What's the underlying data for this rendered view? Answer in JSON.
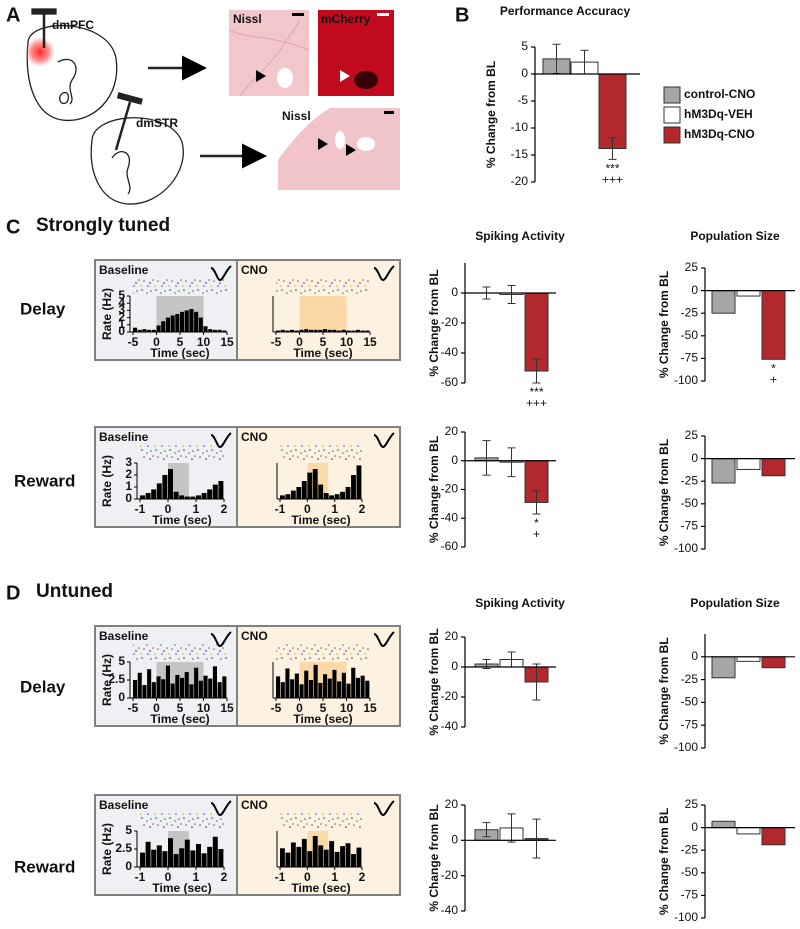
{
  "panel_labels": {
    "a": "A",
    "b": "B",
    "c": "C",
    "d": "D"
  },
  "sections": {
    "strong": "Strongly tuned",
    "untuned": "Untuned"
  },
  "rows": {
    "delay": "Delay",
    "reward": "Reward"
  },
  "anatomy": {
    "region_1": "dmPFC",
    "region_2": "dmSTR",
    "stain_1": "Nissl",
    "stain_2": "mCherry",
    "stain_3": "Nissl"
  },
  "chart_data": [
    {
      "type": "bar",
      "title": "Performance Accuracy",
      "ylabel": "% Change from BL",
      "legend": "right",
      "series": [
        {
          "name": "control-CNO",
          "color": "#a6a6a6",
          "values": [
            2.8
          ],
          "errors": [
            2.7
          ]
        },
        {
          "name": "hM3Dq-VEH",
          "color": "#ffffff",
          "values": [
            2.2
          ],
          "errors": [
            2.2
          ]
        },
        {
          "name": "hM3Dq-CNO",
          "color": "#b3282d",
          "values": [
            -13.8
          ],
          "errors": [
            2.0
          ]
        }
      ],
      "ylim": [
        -20,
        5
      ],
      "yticks": [
        5,
        0,
        -5,
        -10,
        -15,
        -20
      ],
      "annotations": [
        "***",
        "+++"
      ]
    },
    {
      "type": "histogram",
      "title": "Baseline",
      "xlabel": "Time (sec)",
      "ylabel": "Rate (Hz)",
      "bins": [
        -5,
        -4,
        -3,
        -2,
        -1,
        0,
        1,
        2,
        3,
        4,
        5,
        6,
        7,
        8,
        9,
        10,
        11,
        12,
        13,
        14,
        15
      ],
      "values": [
        0.6,
        0.3,
        0.4,
        0.3,
        0.3,
        0.9,
        1.5,
        2.0,
        2.3,
        2.5,
        2.8,
        3.0,
        3.2,
        2.8,
        2.0,
        0.8,
        0.4,
        0.3,
        0.3,
        0.2
      ],
      "color": "#000000",
      "xlim": [
        -5,
        15
      ],
      "xticks": [
        -5,
        0,
        5,
        10,
        15
      ],
      "ylim": [
        0,
        5
      ],
      "yticks": [
        0,
        1,
        2,
        3,
        4,
        5
      ],
      "shade": [
        0,
        10
      ],
      "shade_color": "#c4c4c4",
      "background": "#eef0f3"
    },
    {
      "type": "histogram",
      "title": "CNO",
      "xlabel": "Time (sec)",
      "bins": [
        -5,
        -4,
        -3,
        -2,
        -1,
        0,
        1,
        2,
        3,
        4,
        5,
        6,
        7,
        8,
        9,
        10,
        11,
        12,
        13,
        14,
        15
      ],
      "values": [
        0.2,
        0.3,
        0.2,
        0.3,
        0.2,
        0.3,
        0.4,
        0.3,
        0.3,
        0.3,
        0.4,
        0.3,
        0.3,
        0.2,
        0.3,
        0.2,
        0.2,
        0.3,
        0.2,
        0.2
      ],
      "color": "#000000",
      "xlim": [
        -5,
        15
      ],
      "xticks": [
        -5,
        0,
        5,
        10,
        15
      ],
      "ylim": [
        0,
        5
      ],
      "shade": [
        0,
        10
      ],
      "shade_color": "#fbd9a6",
      "background": "#fdf2e2"
    },
    {
      "type": "bar",
      "title": "Spiking Activity",
      "ylabel": "% Change from BL",
      "series": [
        {
          "color": "#a6a6a6",
          "values": [
            0
          ],
          "errors": [
            4
          ]
        },
        {
          "color": "#ffffff",
          "values": [
            -1
          ],
          "errors": [
            6
          ]
        },
        {
          "color": "#b3282d",
          "values": [
            -52
          ],
          "errors": [
            8
          ]
        }
      ],
      "ylim": [
        -60,
        20
      ],
      "yticks": [
        0,
        -20,
        -40,
        -60
      ],
      "annotations": [
        "***",
        "+++"
      ]
    },
    {
      "type": "bar",
      "title": "Population Size",
      "ylabel": "% Change from BL",
      "series": [
        {
          "color": "#a6a6a6",
          "values": [
            -25
          ]
        },
        {
          "color": "#ffffff",
          "values": [
            -6
          ]
        },
        {
          "color": "#b3282d",
          "values": [
            -76
          ]
        }
      ],
      "ylim": [
        -100,
        25
      ],
      "yticks": [
        25,
        0,
        -25,
        -50,
        -75,
        -100
      ],
      "annotations": [
        "*",
        "+"
      ]
    },
    {
      "type": "histogram",
      "title": "Baseline",
      "xlabel": "Time (sec)",
      "ylabel": "Rate (Hz)",
      "bins": [
        -1,
        -0.8,
        -0.6,
        -0.4,
        -0.2,
        0,
        0.2,
        0.4,
        0.6,
        0.8,
        1,
        1.2,
        1.4,
        1.6,
        1.8,
        2
      ],
      "values": [
        0.3,
        0.5,
        0.8,
        1.3,
        2.0,
        2.5,
        0.6,
        0.3,
        0.2,
        0.2,
        0.3,
        0.5,
        0.8,
        1.2,
        1.5
      ],
      "color": "#000000",
      "xlim": [
        -1,
        2
      ],
      "xticks": [
        -1,
        0,
        1,
        2
      ],
      "ylim": [
        0,
        3
      ],
      "yticks": [
        0,
        1,
        2,
        3
      ],
      "shade": [
        0,
        0.75
      ],
      "shade_color": "#c4c4c4",
      "background": "#eef0f3"
    },
    {
      "type": "histogram",
      "title": "CNO",
      "xlabel": "Time (sec)",
      "bins": [
        -1,
        -0.8,
        -0.6,
        -0.4,
        -0.2,
        0,
        0.2,
        0.4,
        0.6,
        0.8,
        1,
        1.2,
        1.4,
        1.6,
        1.8,
        2
      ],
      "values": [
        0.3,
        0.4,
        0.7,
        1.0,
        1.5,
        2.2,
        2.5,
        1.2,
        0.5,
        0.3,
        0.4,
        0.6,
        1.0,
        2.0,
        2.8
      ],
      "color": "#000000",
      "xlim": [
        -1,
        2
      ],
      "xticks": [
        -1,
        0,
        1,
        2
      ],
      "ylim": [
        0,
        3
      ],
      "shade": [
        0,
        0.75
      ],
      "shade_color": "#fbd9a6",
      "background": "#fdf2e2"
    },
    {
      "type": "bar",
      "ylabel": "% Change from BL",
      "series": [
        {
          "color": "#a6a6a6",
          "values": [
            2
          ],
          "errors": [
            12
          ]
        },
        {
          "color": "#ffffff",
          "values": [
            -1
          ],
          "errors": [
            10
          ]
        },
        {
          "color": "#b3282d",
          "values": [
            -29
          ],
          "errors": [
            8
          ]
        }
      ],
      "ylim": [
        -60,
        20
      ],
      "yticks": [
        20,
        0,
        -20,
        -40,
        -60
      ],
      "annotations": [
        "*",
        "+"
      ]
    },
    {
      "type": "bar",
      "ylabel": "% Change from BL",
      "series": [
        {
          "color": "#a6a6a6",
          "values": [
            -27
          ]
        },
        {
          "color": "#ffffff",
          "values": [
            -12
          ]
        },
        {
          "color": "#b3282d",
          "values": [
            -19
          ]
        }
      ],
      "ylim": [
        -100,
        25
      ],
      "yticks": [
        25,
        0,
        -25,
        -50,
        -75,
        -100
      ]
    },
    {
      "type": "histogram",
      "title": "Baseline",
      "xlabel": "Time (sec)",
      "ylabel": "Rate (Hz)",
      "bins": [
        -5,
        -4,
        -3,
        -2,
        -1,
        0,
        1,
        2,
        3,
        4,
        5,
        6,
        7,
        8,
        9,
        10,
        11,
        12,
        13,
        14,
        15
      ],
      "values": [
        2.5,
        3.5,
        1.8,
        4.0,
        2.2,
        3.0,
        2.6,
        4.5,
        2.0,
        3.2,
        2.8,
        3.6,
        1.9,
        4.2,
        2.4,
        3.1,
        2.7,
        4.4,
        2.2,
        3.0
      ],
      "color": "#000000",
      "xlim": [
        -5,
        15
      ],
      "xticks": [
        -5,
        0,
        5,
        10,
        15
      ],
      "ylim": [
        0,
        5
      ],
      "yticks": [
        0,
        2.5,
        5
      ],
      "shade": [
        0,
        10
      ],
      "shade_color": "#c4c4c4",
      "background": "#eef0f3"
    },
    {
      "type": "histogram",
      "title": "CNO",
      "xlabel": "Time (sec)",
      "bins": [
        -5,
        -4,
        -3,
        -2,
        -1,
        0,
        1,
        2,
        3,
        4,
        5,
        6,
        7,
        8,
        9,
        10,
        11,
        12,
        13,
        14,
        15
      ],
      "values": [
        3.0,
        2.2,
        4.1,
        2.6,
        3.4,
        1.9,
        3.8,
        2.5,
        4.6,
        2.1,
        3.3,
        2.7,
        3.9,
        2.3,
        3.5,
        2.0,
        4.2,
        2.8,
        3.1,
        2.4
      ],
      "color": "#000000",
      "xlim": [
        -5,
        15
      ],
      "xticks": [
        -5,
        0,
        5,
        10,
        15
      ],
      "ylim": [
        0,
        5
      ],
      "shade": [
        0,
        10
      ],
      "shade_color": "#fbd9a6",
      "background": "#fdf2e2"
    },
    {
      "type": "bar",
      "title": "Spiking Activity",
      "ylabel": "% Change from BL",
      "series": [
        {
          "color": "#a6a6a6",
          "values": [
            2
          ],
          "errors": [
            3
          ]
        },
        {
          "color": "#ffffff",
          "values": [
            5
          ],
          "errors": [
            5
          ]
        },
        {
          "color": "#b3282d",
          "values": [
            -10
          ],
          "errors": [
            12
          ]
        }
      ],
      "ylim": [
        -40,
        20
      ],
      "yticks": [
        20,
        0,
        -20,
        -40
      ]
    },
    {
      "type": "bar",
      "title": "Population Size",
      "ylabel": "% Change from BL",
      "series": [
        {
          "color": "#a6a6a6",
          "values": [
            -23
          ]
        },
        {
          "color": "#ffffff",
          "values": [
            -5
          ]
        },
        {
          "color": "#b3282d",
          "values": [
            -12
          ]
        }
      ],
      "ylim": [
        -100,
        25
      ],
      "yticks": [
        0,
        -25,
        -50,
        -75,
        -100
      ]
    },
    {
      "type": "histogram",
      "title": "Baseline",
      "xlabel": "Time (sec)",
      "ylabel": "Rate (Hz)",
      "bins": [
        -1,
        -0.8,
        -0.6,
        -0.4,
        -0.2,
        0,
        0.2,
        0.4,
        0.6,
        0.8,
        1,
        1.2,
        1.4,
        1.6,
        1.8,
        2
      ],
      "values": [
        2.0,
        3.5,
        2.4,
        3.0,
        2.2,
        4.0,
        1.8,
        2.6,
        3.8,
        2.3,
        3.2,
        1.9,
        2.8,
        4.2,
        2.5
      ],
      "color": "#000000",
      "xlim": [
        -1,
        2
      ],
      "xticks": [
        -1,
        0,
        1,
        2
      ],
      "ylim": [
        0,
        5
      ],
      "yticks": [
        0,
        2.5,
        5
      ],
      "shade": [
        0,
        0.75
      ],
      "shade_color": "#c4c4c4",
      "background": "#eef0f3"
    },
    {
      "type": "histogram",
      "title": "CNO",
      "xlabel": "Time (sec)",
      "bins": [
        -1,
        -0.8,
        -0.6,
        -0.4,
        -0.2,
        0,
        0.2,
        0.4,
        0.6,
        0.8,
        1,
        1.2,
        1.4,
        1.6,
        1.8,
        2
      ],
      "values": [
        2.6,
        2.0,
        3.4,
        2.8,
        3.9,
        2.2,
        4.3,
        3.0,
        2.4,
        3.6,
        2.1,
        2.9,
        3.3,
        1.8,
        2.7
      ],
      "color": "#000000",
      "xlim": [
        -1,
        2
      ],
      "xticks": [
        -1,
        0,
        1,
        2
      ],
      "ylim": [
        0,
        5
      ],
      "shade": [
        0,
        0.75
      ],
      "shade_color": "#fbd9a6",
      "background": "#fdf2e2"
    },
    {
      "type": "bar",
      "ylabel": "% Change from BL",
      "series": [
        {
          "color": "#a6a6a6",
          "values": [
            6
          ],
          "errors": [
            4
          ]
        },
        {
          "color": "#ffffff",
          "values": [
            7
          ],
          "errors": [
            8
          ]
        },
        {
          "color": "#b3282d",
          "values": [
            1
          ],
          "errors": [
            11
          ]
        }
      ],
      "ylim": [
        -40,
        20
      ],
      "yticks": [
        20,
        0,
        -20,
        -40
      ]
    },
    {
      "type": "bar",
      "ylabel": "% Change from BL",
      "series": [
        {
          "color": "#a6a6a6",
          "values": [
            7
          ]
        },
        {
          "color": "#ffffff",
          "values": [
            -7
          ]
        },
        {
          "color": "#b3282d",
          "values": [
            -19
          ]
        }
      ],
      "ylim": [
        -100,
        25
      ],
      "yticks": [
        25,
        0,
        -25,
        -50,
        -75,
        -100
      ]
    }
  ]
}
